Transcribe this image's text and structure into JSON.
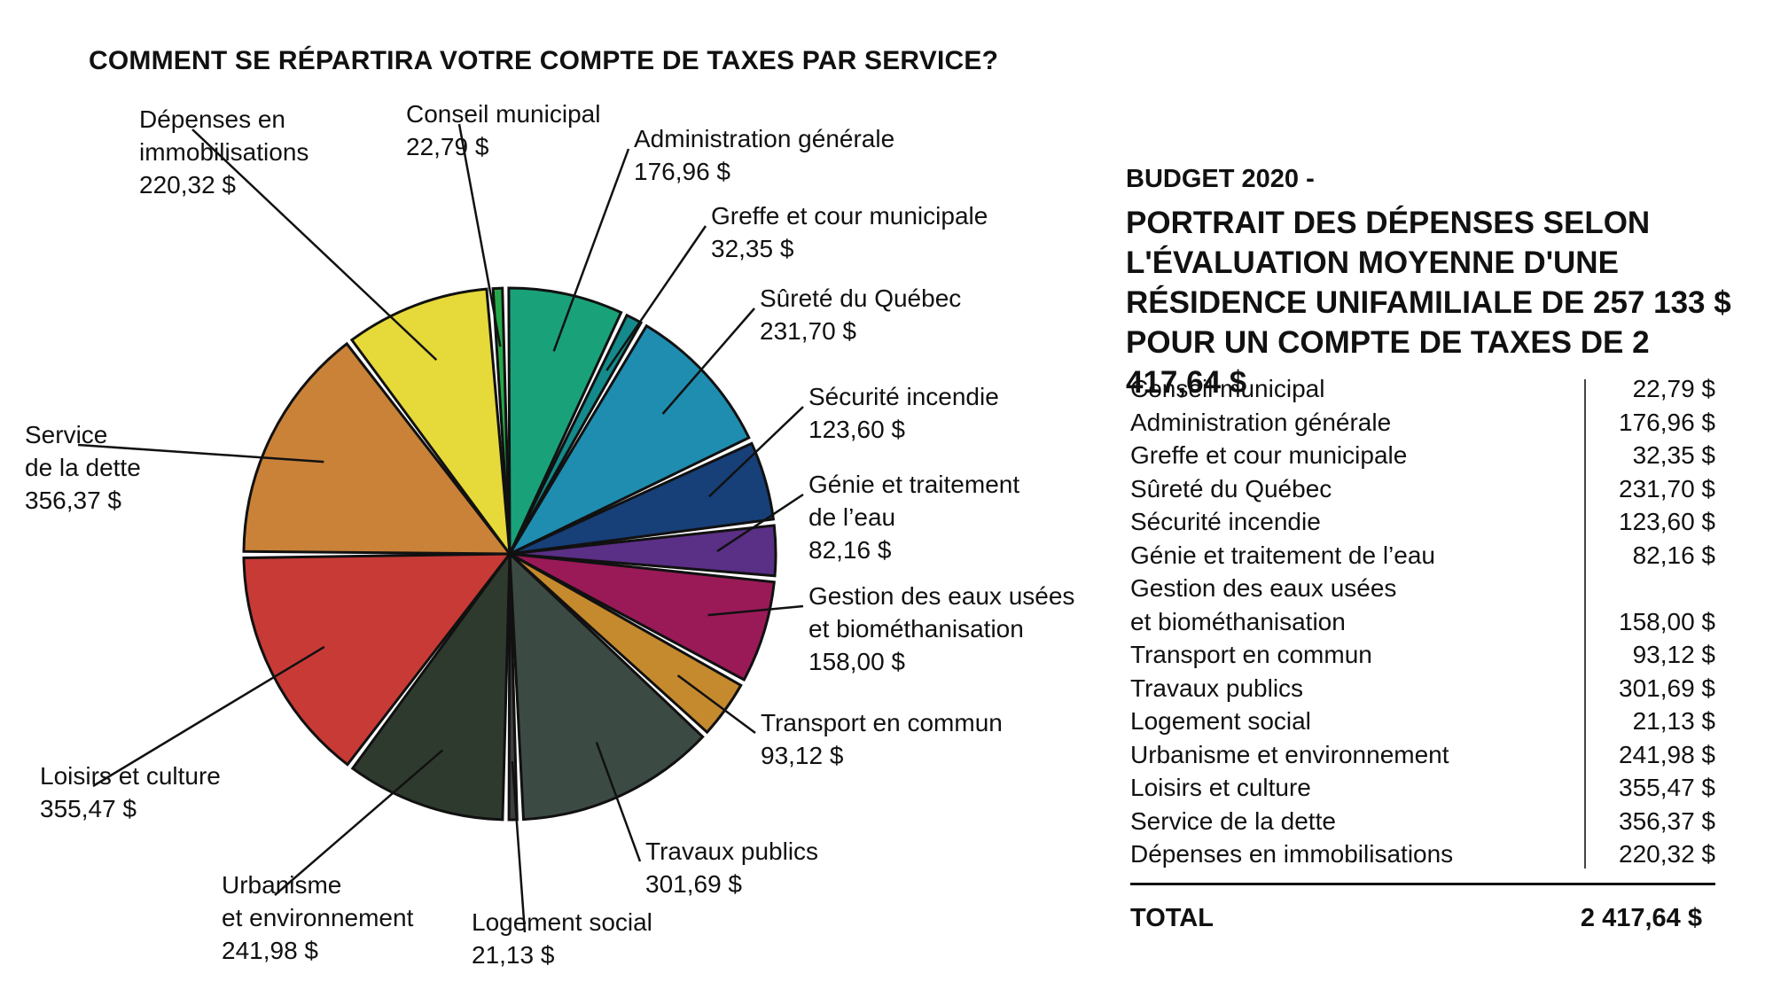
{
  "chart_title": "COMMENT SE RÉPARTIRA VOTRE COMPTE DE TAXES PAR SERVICE?",
  "budget_label": "BUDGET 2020 -",
  "portrait_title": "PORTRAIT DES DÉPENSES SELON\nL'ÉVALUATION MOYENNE D'UNE\nRÉSIDENCE UNIFAMILIALE DE 257 133 $\nPOUR UN COMPTE DE TAXES DE 2 417,64 $",
  "total_label": "TOTAL",
  "total_value": "2 417,64 $",
  "pie_labels": [
    "Conseil municipal\n22,79 $",
    "Administration générale\n176,96 $",
    "Greffe et cour municipale\n32,35 $",
    "Sûreté du Québec\n231,70 $",
    "Sécurité incendie\n123,60 $",
    "Génie et traitement\nde l’eau\n82,16 $",
    "Gestion des eaux usées\net biométhanisation\n158,00 $",
    "Transport en commun\n93,12 $",
    "Travaux publics\n301,69 $",
    "Logement social\n21,13 $",
    "Urbanisme\net environnement\n241,98 $",
    "Loisirs et culture\n355,47 $",
    "Service\nde la dette\n356,37 $",
    "Dépenses en\nimmobilisations\n220,32 $"
  ],
  "table_rows": [
    {
      "name": "Conseil municipal",
      "value": "22,79 $"
    },
    {
      "name": "Administration générale",
      "value": "176,96 $"
    },
    {
      "name": "Greffe et cour municipale",
      "value": "32,35 $"
    },
    {
      "name": "Sûreté du Québec",
      "value": "231,70 $"
    },
    {
      "name": "Sécurité incendie",
      "value": "123,60 $"
    },
    {
      "name": "Génie et traitement de l’eau",
      "value": "82,16 $"
    },
    {
      "name": "Gestion des eaux usées\net biométhanisation",
      "value": "158,00 $"
    },
    {
      "name": "Transport en commun",
      "value": "93,12 $"
    },
    {
      "name": "Travaux publics",
      "value": "301,69 $"
    },
    {
      "name": "Logement social",
      "value": "21,13 $"
    },
    {
      "name": "Urbanisme et environnement",
      "value": "241,98 $"
    },
    {
      "name": "Loisirs et culture",
      "value": "355,47 $"
    },
    {
      "name": "Service de la dette",
      "value": "356,37 $"
    },
    {
      "name": "Dépenses en immobilisations",
      "value": "220,32 $"
    }
  ],
  "chart_data": {
    "type": "pie",
    "title": "COMMENT SE RÉPARTIRA VOTRE COMPTE DE TAXES PAR SERVICE?",
    "categories": [
      "Conseil municipal",
      "Administration générale",
      "Greffe et cour municipale",
      "Sûreté du Québec",
      "Sécurité incendie",
      "Génie et traitement de l’eau",
      "Gestion des eaux usées et biométhanisation",
      "Transport en commun",
      "Travaux publics",
      "Logement social",
      "Urbanisme et environnement",
      "Loisirs et culture",
      "Service de la dette",
      "Dépenses en immobilisations"
    ],
    "values": [
      22.79,
      176.96,
      32.35,
      231.7,
      123.6,
      82.16,
      158.0,
      93.12,
      301.69,
      21.13,
      241.98,
      355.47,
      356.37,
      220.32
    ],
    "colors": [
      "#25a84a",
      "#19a27a",
      "#148a8c",
      "#1f8db0",
      "#173f78",
      "#5a2f86",
      "#9a1a58",
      "#c58a2e",
      "#3c4a44",
      "#3e3e3e",
      "#2f3a2f",
      "#c83a36",
      "#c98238",
      "#e6d93a"
    ]
  }
}
